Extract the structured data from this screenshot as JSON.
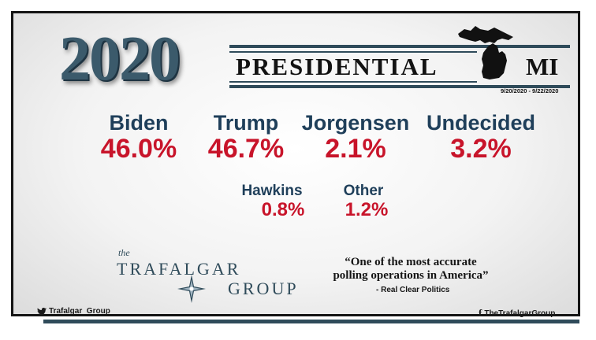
{
  "header": {
    "year": "2020",
    "title": "PRESIDENTIAL",
    "state": "MI",
    "dates": "9/20/2020 - 9/22/2020"
  },
  "candidates": [
    {
      "name": "Biden",
      "pct": "46.0%"
    },
    {
      "name": "Trump",
      "pct": "46.7%"
    },
    {
      "name": "Jorgensen",
      "pct": "2.1%"
    },
    {
      "name": "Undecided",
      "pct": "3.2%"
    },
    {
      "name": "Hawkins",
      "pct": "0.8%"
    },
    {
      "name": "Other",
      "pct": "1.2%"
    }
  ],
  "logo": {
    "the": "the",
    "line1": "TRAFALGAR",
    "line2": "GROUP"
  },
  "quote": {
    "text": "“One of the most accurate polling operations in America”",
    "source": "- Real Clear Politics"
  },
  "social": {
    "twitter": "Trafalgar_Group",
    "facebook": "TheTrafalgarGroup"
  },
  "icons": [
    "michigan-map-icon",
    "compass-rose-icon",
    "twitter-bird-icon",
    "facebook-icon"
  ],
  "colors": {
    "name": "#1f3f5a",
    "percent": "#c8142a",
    "accent": "#2f4b5a"
  }
}
